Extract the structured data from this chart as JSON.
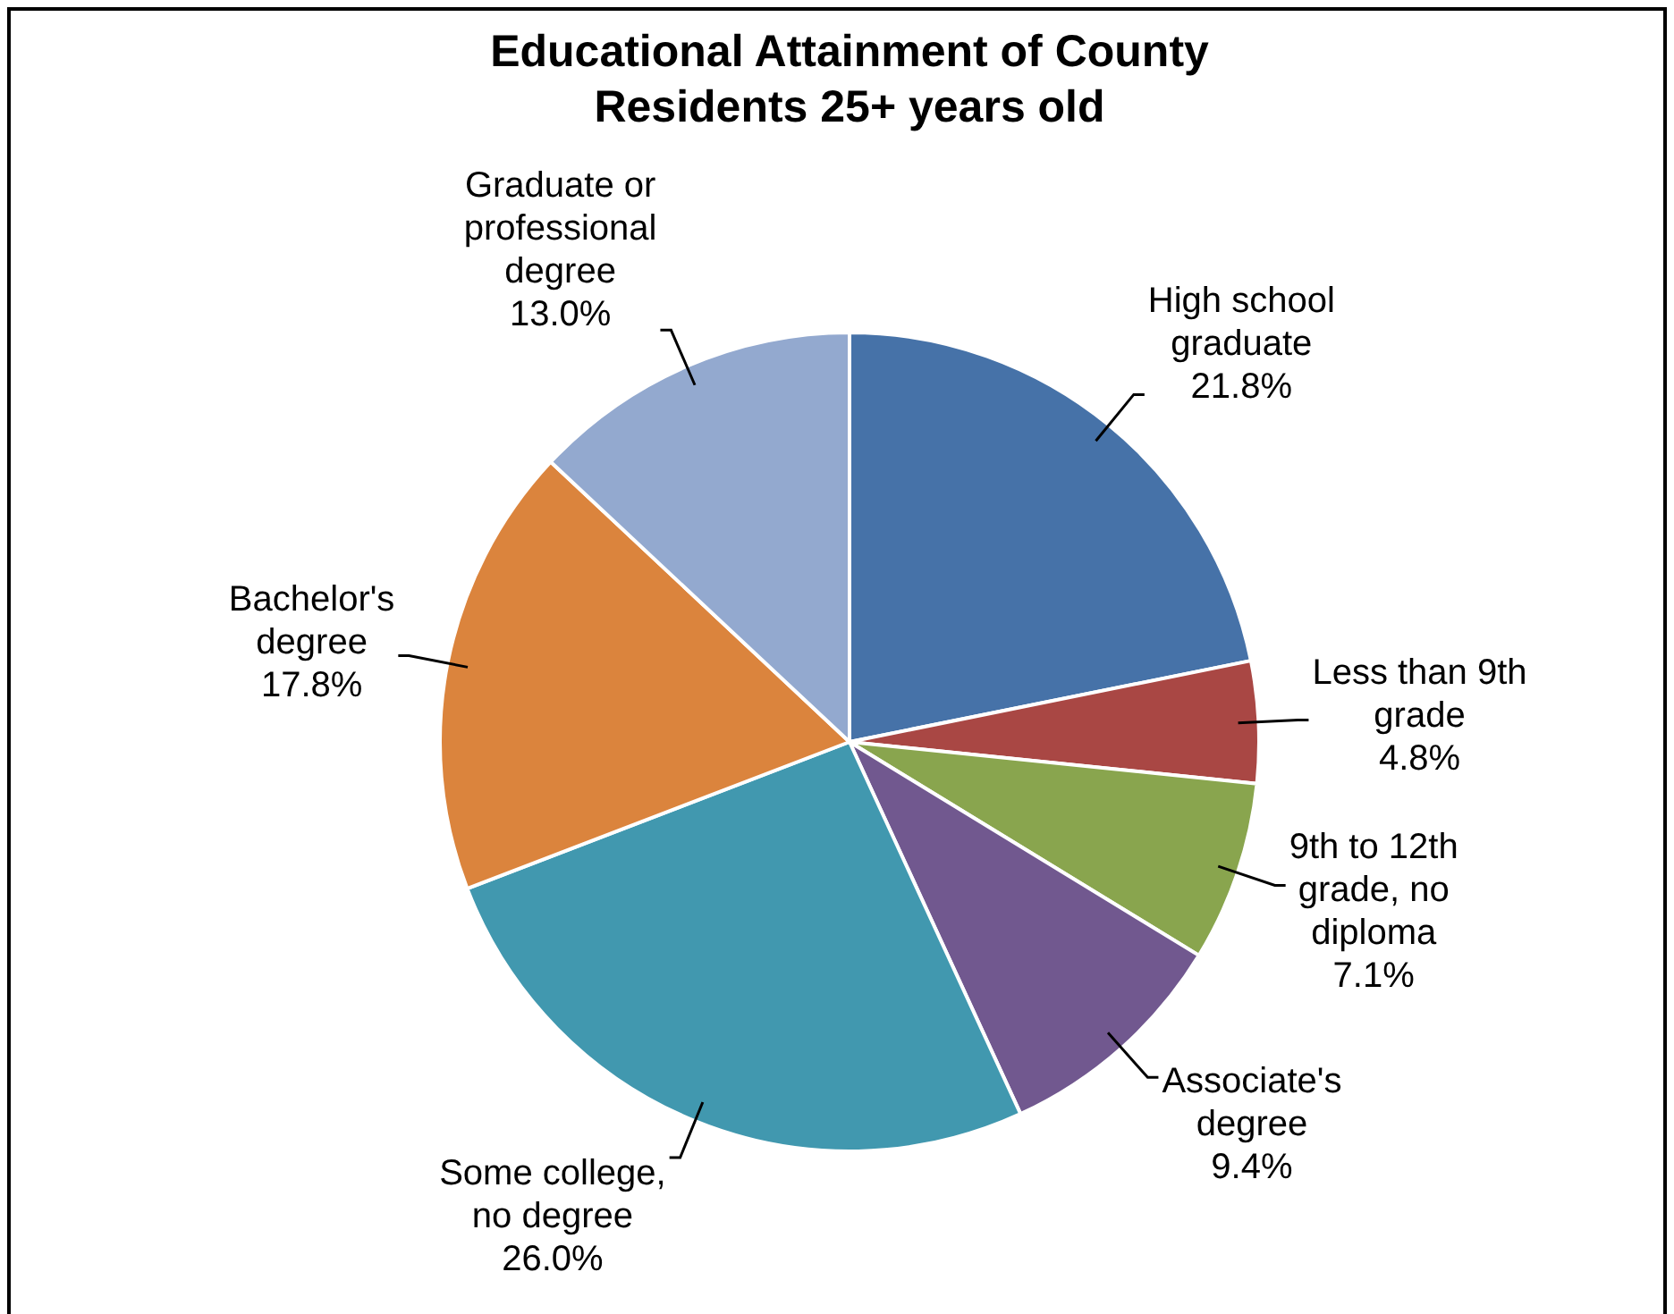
{
  "chart_data": {
    "type": "pie",
    "title": "Educational Attainment of County Residents 25+ years old",
    "categories": [
      "High school graduate",
      "Less than 9th grade",
      "9th to 12th grade, no diploma",
      "Associate's degree",
      "Some college, no degree",
      "Bachelor's degree",
      "Graduate or professional degree"
    ],
    "values": [
      21.8,
      4.8,
      7.1,
      9.4,
      26.0,
      17.8,
      13.0
    ],
    "value_labels": [
      "21.8%",
      "4.8%",
      "7.1%",
      "9.4%",
      "26.0%",
      "17.8%",
      "13.0%"
    ],
    "colors": [
      "#4672a8",
      "#a94744",
      "#89a54e",
      "#71588f",
      "#4198af",
      "#db843d",
      "#93a9cf"
    ],
    "legend": false
  }
}
